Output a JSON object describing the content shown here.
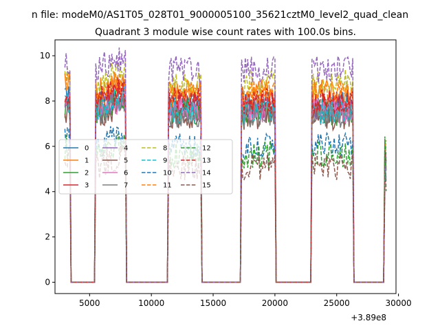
{
  "chart_data": {
    "type": "line",
    "suptitle": "n file: modeM0/AS1T05_028T01_9000005100_35621cztM0_level2_quad_clean",
    "title": "Quadrant 3 module wise count rates with 100.0s bins.",
    "xlabel": "",
    "ylabel": "",
    "x_offset_label": "+3.89e8",
    "xlim": [
      2200,
      29800
    ],
    "ylim": [
      -0.5,
      10.7
    ],
    "x_ticks": [
      5000,
      10000,
      15000,
      20000,
      25000,
      30000
    ],
    "x_tick_labels": [
      "5000",
      "10000",
      "15000",
      "20000",
      "25000",
      "30000"
    ],
    "y_ticks": [
      0,
      2,
      4,
      6,
      8,
      10
    ],
    "y_tick_labels": [
      "0",
      "2",
      "4",
      "6",
      "8",
      "10"
    ],
    "grid": false,
    "legend_position": "center-left",
    "legend_columns": 4,
    "on_intervals": [
      [
        3000,
        3400
      ],
      [
        5500,
        7900
      ],
      [
        11400,
        14000
      ],
      [
        17300,
        20000
      ],
      [
        23000,
        26300
      ],
      [
        28900,
        29000
      ]
    ],
    "series": [
      {
        "name": "0",
        "color": "#1f77b4",
        "dash": "solid",
        "level": 7.8
      },
      {
        "name": "1",
        "color": "#ff7f0e",
        "dash": "solid",
        "level": 8.4
      },
      {
        "name": "2",
        "color": "#2ca02c",
        "dash": "solid",
        "level": 7.5
      },
      {
        "name": "3",
        "color": "#d62728",
        "dash": "solid",
        "level": 7.9
      },
      {
        "name": "4",
        "color": "#9467bd",
        "dash": "solid",
        "level": 7.7
      },
      {
        "name": "5",
        "color": "#8c564b",
        "dash": "solid",
        "level": 7.3
      },
      {
        "name": "6",
        "color": "#e377c2",
        "dash": "solid",
        "level": 7.6
      },
      {
        "name": "7",
        "color": "#7f7f7f",
        "dash": "solid",
        "level": 7.4
      },
      {
        "name": "8",
        "color": "#bcbd22",
        "dash": "dashed",
        "level": 8.8
      },
      {
        "name": "9",
        "color": "#17becf",
        "dash": "dashed",
        "level": 7.6
      },
      {
        "name": "10",
        "color": "#1f77b4",
        "dash": "dashed",
        "level": 6.0
      },
      {
        "name": "11",
        "color": "#ff7f0e",
        "dash": "dashed",
        "level": 8.3
      },
      {
        "name": "12",
        "color": "#2ca02c",
        "dash": "dashed",
        "level": 5.6
      },
      {
        "name": "13",
        "color": "#d62728",
        "dash": "dashed",
        "level": 8.0
      },
      {
        "name": "14",
        "color": "#9467bd",
        "dash": "dashed",
        "level": 9.4
      },
      {
        "name": "15",
        "color": "#8c564b",
        "dash": "dashed",
        "level": 5.1
      }
    ]
  }
}
